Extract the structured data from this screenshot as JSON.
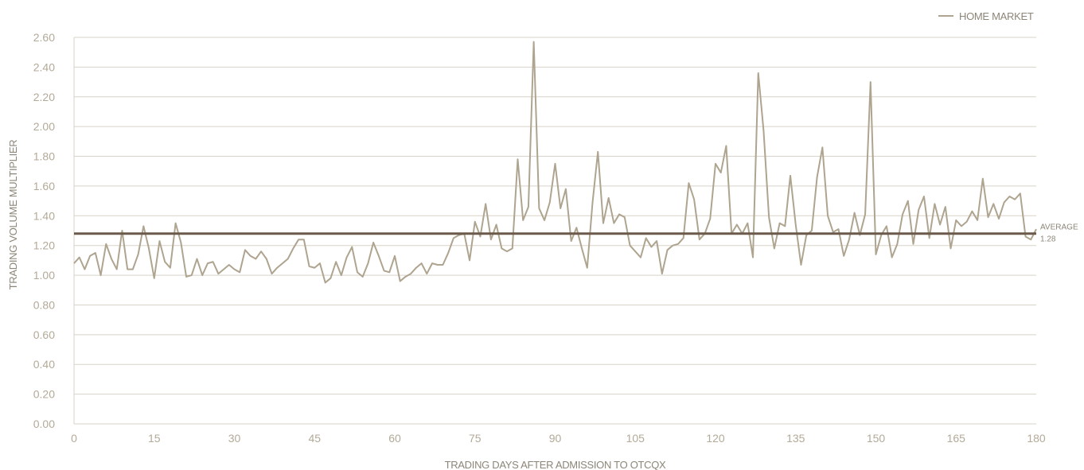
{
  "chart_data": {
    "type": "line",
    "title": "",
    "xlabel": "TRADING DAYS AFTER ADMISSION TO OTCQX",
    "ylabel": "TRADING VOLUME MULTIPLIER",
    "xlim": [
      0,
      180
    ],
    "ylim": [
      0,
      2.6
    ],
    "x_ticks": [
      0,
      15,
      30,
      45,
      60,
      75,
      90,
      105,
      120,
      135,
      150,
      165,
      180
    ],
    "y_ticks": [
      "0.00",
      "0.20",
      "0.40",
      "0.60",
      "0.80",
      "1.00",
      "1.20",
      "1.40",
      "1.60",
      "1.80",
      "2.00",
      "2.20",
      "2.40",
      "2.60"
    ],
    "grid": true,
    "legend_position": "top-right",
    "series": [
      {
        "name": "HOME MARKET",
        "color": "#aea48f",
        "x_start": 0,
        "x_step": 1,
        "values": [
          1.08,
          1.12,
          1.04,
          1.13,
          1.15,
          1.0,
          1.21,
          1.11,
          1.04,
          1.3,
          1.04,
          1.04,
          1.14,
          1.33,
          1.18,
          0.98,
          1.23,
          1.09,
          1.05,
          1.35,
          1.22,
          0.99,
          1.0,
          1.11,
          1.0,
          1.08,
          1.09,
          1.01,
          1.04,
          1.07,
          1.04,
          1.02,
          1.17,
          1.13,
          1.11,
          1.16,
          1.11,
          1.01,
          1.05,
          1.08,
          1.11,
          1.18,
          1.24,
          1.24,
          1.06,
          1.05,
          1.08,
          0.95,
          0.98,
          1.09,
          1.0,
          1.12,
          1.19,
          1.02,
          0.99,
          1.08,
          1.22,
          1.13,
          1.03,
          1.02,
          1.13,
          0.96,
          0.99,
          1.01,
          1.05,
          1.08,
          1.01,
          1.08,
          1.07,
          1.07,
          1.15,
          1.25,
          1.27,
          1.28,
          1.1,
          1.36,
          1.26,
          1.48,
          1.24,
          1.34,
          1.18,
          1.16,
          1.18,
          1.78,
          1.37,
          1.46,
          2.57,
          1.45,
          1.37,
          1.49,
          1.75,
          1.45,
          1.58,
          1.23,
          1.32,
          1.18,
          1.05,
          1.49,
          1.83,
          1.35,
          1.52,
          1.35,
          1.41,
          1.39,
          1.2,
          1.16,
          1.12,
          1.25,
          1.19,
          1.23,
          1.01,
          1.17,
          1.2,
          1.21,
          1.25,
          1.62,
          1.51,
          1.24,
          1.28,
          1.38,
          1.75,
          1.69,
          1.87,
          1.28,
          1.34,
          1.28,
          1.35,
          1.12,
          2.36,
          1.97,
          1.39,
          1.18,
          1.35,
          1.33,
          1.67,
          1.34,
          1.07,
          1.27,
          1.3,
          1.66,
          1.86,
          1.4,
          1.29,
          1.31,
          1.13,
          1.24,
          1.42,
          1.27,
          1.41,
          2.3,
          1.14,
          1.27,
          1.33,
          1.12,
          1.21,
          1.41,
          1.5,
          1.21,
          1.44,
          1.53,
          1.25,
          1.48,
          1.34,
          1.46,
          1.18,
          1.37,
          1.33,
          1.36,
          1.43,
          1.37,
          1.65,
          1.39,
          1.48,
          1.38,
          1.49,
          1.53,
          1.51,
          1.55,
          1.26,
          1.24,
          1.31
        ]
      }
    ],
    "reference_lines": [
      {
        "label": "AVERAGE",
        "value_label": "1.28",
        "value": 1.28,
        "color": "#6b5a4b"
      }
    ]
  }
}
